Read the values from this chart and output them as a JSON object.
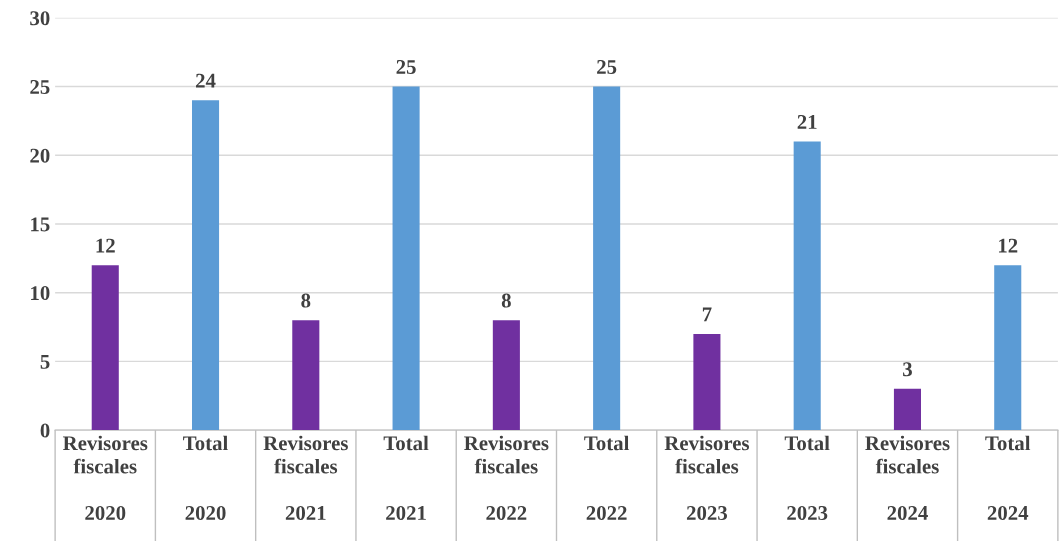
{
  "chart_data": {
    "type": "bar",
    "categories": [
      "Revisores fiscales\n2020",
      "Total\n2020",
      "Revisores fiscales\n2021",
      "Total\n2021",
      "Revisores fiscales\n2022",
      "Total\n2022",
      "Revisores fiscales\n2023",
      "Total\n2023",
      "Revisores fiscales\n2024",
      "Total\n2024"
    ],
    "values": [
      12,
      24,
      8,
      25,
      8,
      25,
      7,
      21,
      3,
      12
    ],
    "colors": [
      "#7030a0",
      "#5b9bd5",
      "#7030a0",
      "#5b9bd5",
      "#7030a0",
      "#5b9bd5",
      "#7030a0",
      "#5b9bd5",
      "#7030a0",
      "#5b9bd5"
    ],
    "ylim": [
      0,
      30
    ],
    "yticks": [
      0,
      5,
      10,
      15,
      20,
      25,
      30
    ],
    "grid": "y",
    "data_labels": true
  }
}
